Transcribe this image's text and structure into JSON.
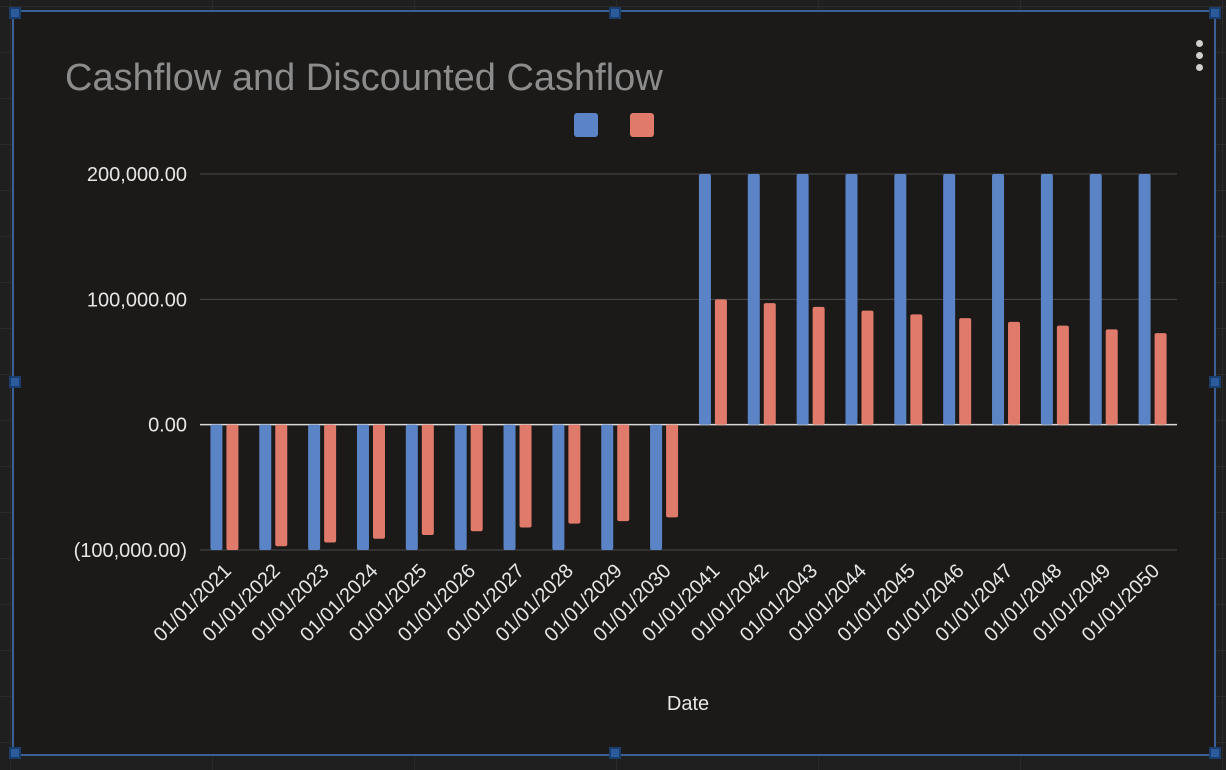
{
  "chart_data": {
    "type": "bar",
    "title": "Cashflow and Discounted Cashflow",
    "xlabel": "Date",
    "ylabel": "",
    "ylim": [
      -100000,
      200000
    ],
    "yticks": [
      200000,
      100000,
      0,
      -100000
    ],
    "ytick_labels": [
      "200,000.00",
      "100,000.00",
      "0.00",
      "(100,000.00)"
    ],
    "categories": [
      "01/01/2021",
      "01/01/2022",
      "01/01/2023",
      "01/01/2024",
      "01/01/2025",
      "01/01/2026",
      "01/01/2027",
      "01/01/2028",
      "01/01/2029",
      "01/01/2030",
      "01/01/2041",
      "01/01/2042",
      "01/01/2043",
      "01/01/2044",
      "01/01/2045",
      "01/01/2046",
      "01/01/2047",
      "01/01/2048",
      "01/01/2049",
      "01/01/2050"
    ],
    "series": [
      {
        "color": "#5b84c7",
        "values": [
          -100000,
          -100000,
          -100000,
          -100000,
          -100000,
          -100000,
          -100000,
          -100000,
          -100000,
          -100000,
          200000,
          200000,
          200000,
          200000,
          200000,
          200000,
          200000,
          200000,
          200000,
          200000
        ]
      },
      {
        "color": "#e07a6a",
        "values": [
          -100000,
          -97000,
          -94000,
          -91000,
          -88000,
          -85000,
          -82000,
          -79000,
          -77000,
          -74000,
          100000,
          97000,
          94000,
          91000,
          88000,
          85000,
          82000,
          79000,
          76000,
          73000
        ]
      }
    ],
    "legend": "top-center",
    "grid": true
  },
  "colors": {
    "background": "#1b1a19",
    "grid": "#4a4a4a",
    "zero_line": "#d9d9d9",
    "text": "#e6e6e6",
    "title": "#8c8c8c",
    "selection": "#3b5f97"
  },
  "icons": {
    "menu": "more-vert-icon"
  }
}
